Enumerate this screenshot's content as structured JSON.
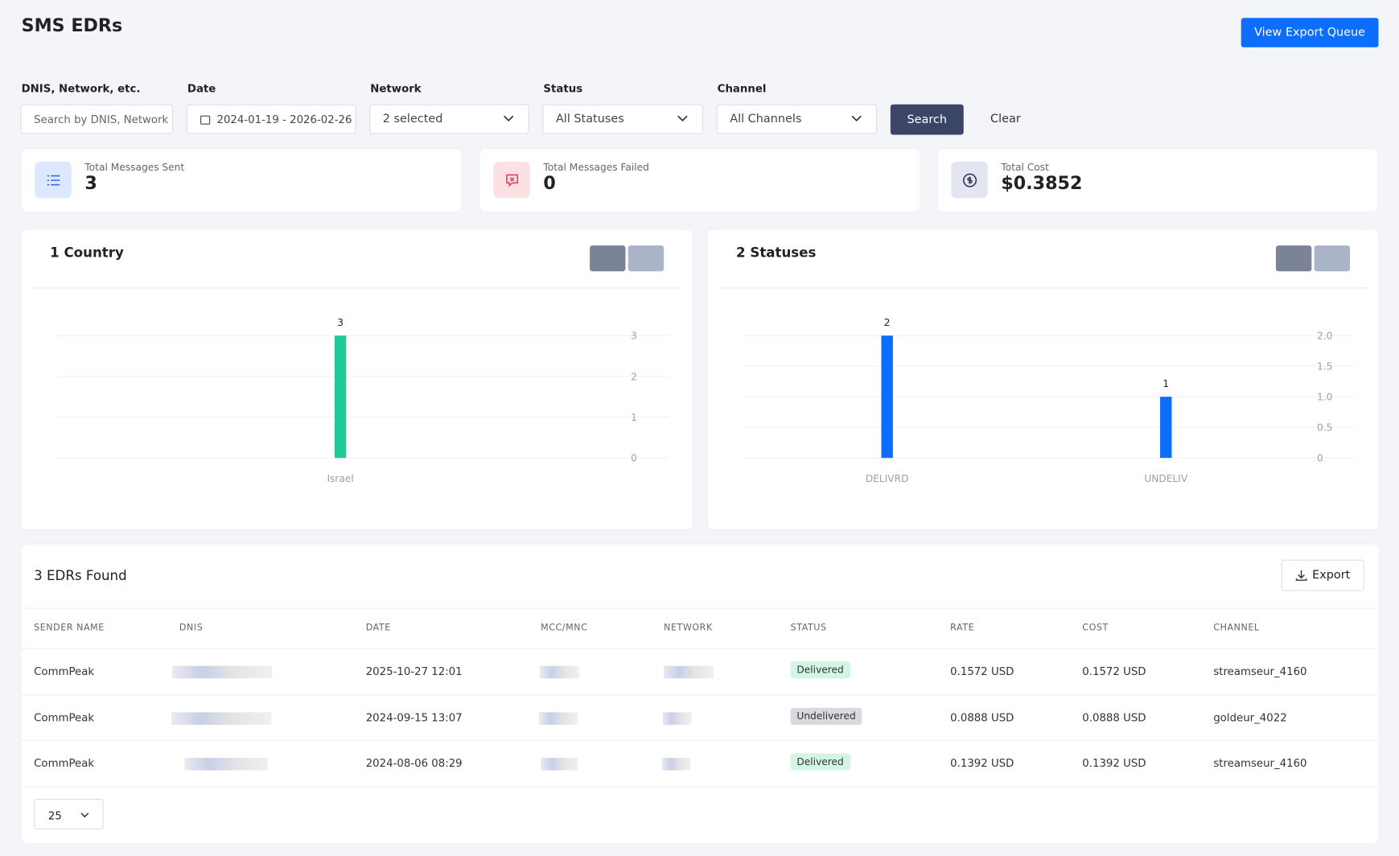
{
  "header": {
    "title": "SMS EDRs",
    "export_queue_button": "View Export Queue"
  },
  "filters": [
    {
      "label": "DNIS, Network, etc.",
      "placeholder": "Search by DNIS, Network"
    },
    {
      "label": "Date",
      "value": "2024-01-19 - 2026-02-26"
    },
    {
      "label": "Network",
      "value": "2 selected"
    },
    {
      "label": "Status",
      "value": "All Statuses"
    },
    {
      "label": "Channel",
      "value": "All Channels"
    }
  ],
  "buttons": {
    "search": "Search",
    "clear": "Clear"
  },
  "stats": [
    {
      "label": "Total Messages Sent",
      "value": "3"
    },
    {
      "label": "Total Messages Failed",
      "value": "0"
    },
    {
      "label": "Total Cost",
      "value": "$0.3852"
    }
  ],
  "chart_data": [
    {
      "type": "bar",
      "title": "1 Country",
      "categories": [
        "Israel"
      ],
      "values": [
        3
      ],
      "color": "#20c997",
      "ylim": [
        0,
        3
      ],
      "yticks": [
        0,
        1,
        2,
        3
      ],
      "grid": true
    },
    {
      "type": "bar",
      "title": "2 Statuses",
      "categories": [
        "DELIVRD",
        "UNDELIV"
      ],
      "values": [
        2,
        1
      ],
      "color": "#0d6efd",
      "ylim": [
        0,
        2
      ],
      "yticks": [
        0,
        0.5,
        {
          "value": 1,
          "label": "1.0"
        },
        1.5,
        {
          "value": 2,
          "label": "2.0"
        }
      ],
      "grid": true
    }
  ],
  "table": {
    "title": "3 EDRs Found",
    "export": "Export",
    "columns": [
      "SENDER NAME",
      "DNIS",
      "DATE",
      "MCC/MNC",
      "NETWORK",
      "STATUS",
      "RATE",
      "COST",
      "CHANNEL"
    ],
    "rows": [
      {
        "sender": "CommPeak",
        "date": "2025-10-27 12:01",
        "status": "Delivered",
        "status_color": "#d3f5e3",
        "rate": "0.1572 USD",
        "cost": "0.1572 USD",
        "channel": "streamseur_4160"
      },
      {
        "sender": "CommPeak",
        "date": "2024-09-15 13:07",
        "status": "Undelivered",
        "status_color": "#d8dadf",
        "rate": "0.0888 USD",
        "cost": "0.0888 USD",
        "channel": "goldeur_4022"
      },
      {
        "sender": "CommPeak",
        "date": "2024-08-06 08:29",
        "status": "Delivered",
        "status_color": "#d3f5e3",
        "rate": "0.1392 USD",
        "cost": "0.1392 USD",
        "channel": "streamseur_4160"
      }
    ],
    "page_size": "25"
  }
}
